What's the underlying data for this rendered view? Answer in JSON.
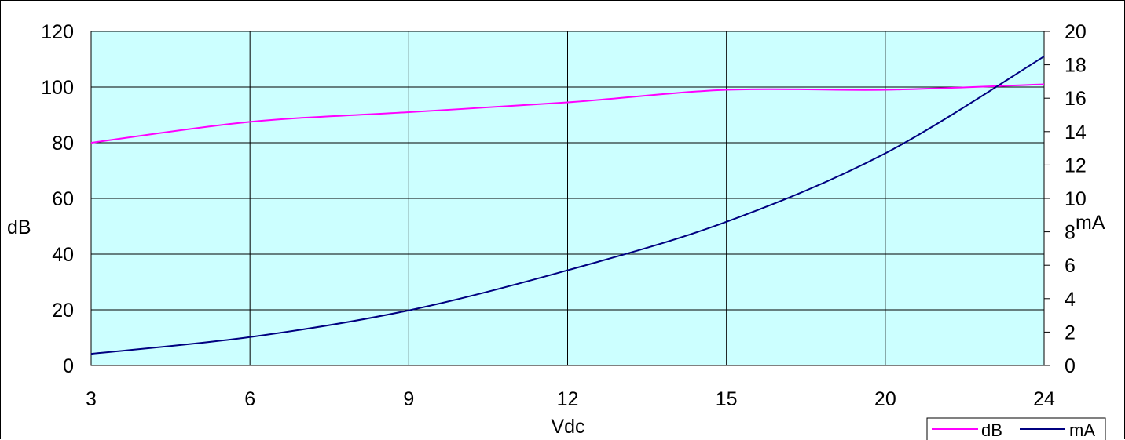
{
  "chart_data": {
    "type": "line",
    "x": [
      3,
      6,
      9,
      12,
      15,
      20,
      24
    ],
    "x_tick_labels": [
      "3",
      "6",
      "9",
      "12",
      "15",
      "20",
      "24"
    ],
    "xlabel": "Vdc",
    "ylabel_left": "dB",
    "ylabel_right": "mA",
    "ylim_left": [
      0,
      120
    ],
    "ylim_right": [
      0,
      20
    ],
    "yticks_left": [
      "0",
      "20",
      "40",
      "60",
      "80",
      "100",
      "120"
    ],
    "yticks_right": [
      "0",
      "2",
      "4",
      "6",
      "8",
      "10",
      "12",
      "14",
      "16",
      "18",
      "20"
    ],
    "grid": true,
    "plot_background": "#ccffff",
    "legend_position": "bottom-right",
    "series": [
      {
        "name": "dB",
        "axis": "left",
        "color": "#ff00ff",
        "values": [
          80,
          87.5,
          91,
          94.5,
          99,
          99,
          101
        ]
      },
      {
        "name": "mA",
        "axis": "right",
        "color": "#000080",
        "values": [
          0.7,
          1.7,
          3.3,
          5.7,
          8.6,
          12.7,
          18.5
        ]
      }
    ]
  }
}
